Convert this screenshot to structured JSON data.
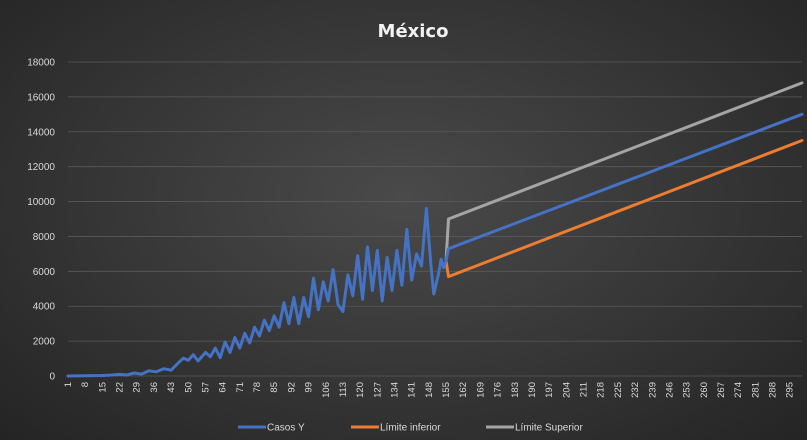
{
  "chart_data": {
    "type": "line",
    "title": "México",
    "xlabel": "",
    "ylabel": "",
    "ylim": [
      0,
      18000
    ],
    "yticks": [
      0,
      2000,
      4000,
      6000,
      8000,
      10000,
      12000,
      14000,
      16000,
      18000
    ],
    "xlim": [
      1,
      300
    ],
    "xticks": [
      1,
      8,
      15,
      22,
      29,
      36,
      43,
      50,
      57,
      64,
      71,
      78,
      85,
      92,
      99,
      106,
      113,
      120,
      127,
      134,
      141,
      148,
      155,
      162,
      169,
      176,
      183,
      190,
      197,
      204,
      211,
      218,
      225,
      232,
      239,
      246,
      253,
      260,
      267,
      274,
      281,
      288,
      295
    ],
    "grid": true,
    "legend_position": "bottom",
    "series": [
      {
        "name": "Casos Y",
        "color": "#4472c4",
        "points": [
          [
            1,
            0
          ],
          [
            8,
            10
          ],
          [
            15,
            30
          ],
          [
            19,
            60
          ],
          [
            22,
            90
          ],
          [
            25,
            60
          ],
          [
            28,
            170
          ],
          [
            31,
            110
          ],
          [
            34,
            300
          ],
          [
            37,
            240
          ],
          [
            40,
            420
          ],
          [
            43,
            330
          ],
          [
            46,
            760
          ],
          [
            48,
            1020
          ],
          [
            50,
            900
          ],
          [
            52,
            1220
          ],
          [
            54,
            860
          ],
          [
            57,
            1350
          ],
          [
            59,
            1100
          ],
          [
            61,
            1600
          ],
          [
            63,
            1050
          ],
          [
            65,
            1950
          ],
          [
            67,
            1350
          ],
          [
            69,
            2200
          ],
          [
            71,
            1600
          ],
          [
            73,
            2450
          ],
          [
            75,
            1900
          ],
          [
            77,
            2800
          ],
          [
            79,
            2300
          ],
          [
            81,
            3200
          ],
          [
            83,
            2600
          ],
          [
            85,
            3450
          ],
          [
            87,
            2800
          ],
          [
            89,
            4200
          ],
          [
            91,
            3000
          ],
          [
            93,
            4500
          ],
          [
            95,
            3000
          ],
          [
            97,
            4500
          ],
          [
            99,
            3400
          ],
          [
            101,
            5600
          ],
          [
            103,
            3800
          ],
          [
            105,
            5400
          ],
          [
            107,
            4300
          ],
          [
            109,
            6100
          ],
          [
            111,
            4100
          ],
          [
            113,
            3700
          ],
          [
            115,
            5800
          ],
          [
            117,
            4600
          ],
          [
            119,
            6900
          ],
          [
            121,
            4400
          ],
          [
            123,
            7400
          ],
          [
            125,
            4900
          ],
          [
            127,
            7200
          ],
          [
            129,
            4300
          ],
          [
            131,
            6800
          ],
          [
            133,
            4900
          ],
          [
            135,
            7200
          ],
          [
            137,
            5200
          ],
          [
            139,
            8400
          ],
          [
            141,
            5500
          ],
          [
            143,
            7000
          ],
          [
            145,
            6300
          ],
          [
            147,
            9600
          ],
          [
            149,
            6100
          ],
          [
            150,
            4700
          ],
          [
            152,
            5900
          ],
          [
            153,
            6700
          ],
          [
            154,
            6200
          ],
          [
            155,
            6600
          ],
          [
            156,
            7300
          ],
          [
            300,
            15000
          ]
        ]
      },
      {
        "name": "Límite inferior",
        "color": "#ed7d31",
        "points": [
          [
            155,
            6600
          ],
          [
            156,
            5700
          ],
          [
            300,
            13500
          ]
        ]
      },
      {
        "name": "Límite Superior",
        "color": "#a5a5a5",
        "points": [
          [
            155,
            6600
          ],
          [
            156,
            9000
          ],
          [
            300,
            16800
          ]
        ]
      }
    ]
  }
}
